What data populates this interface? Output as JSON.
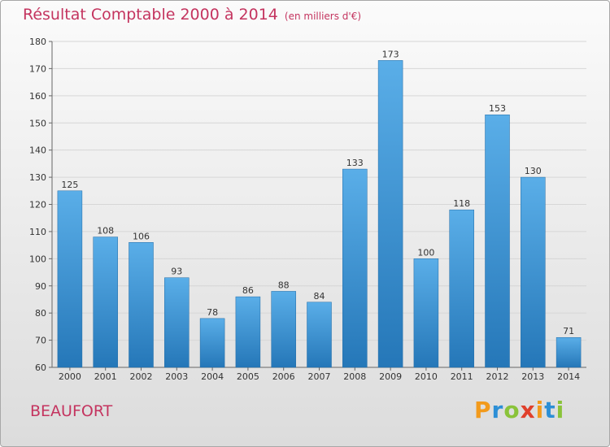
{
  "header": {
    "title": "Résultat Comptable 2000 à 2014",
    "unit": "(en milliers d'€)"
  },
  "footer": {
    "commune": "BEAUFORT",
    "logo_text": "Proxiti"
  },
  "colors": {
    "title": "#c4345f",
    "bar_top": "#5aaee8",
    "bar_bottom": "#2577b8"
  },
  "chart_data": {
    "type": "bar",
    "title": "Résultat Comptable 2000 à 2014",
    "xlabel": "",
    "ylabel": "",
    "categories": [
      "2000",
      "2001",
      "2002",
      "2003",
      "2004",
      "2005",
      "2006",
      "2007",
      "2008",
      "2009",
      "2010",
      "2011",
      "2012",
      "2013",
      "2014"
    ],
    "values": [
      125,
      108,
      106,
      93,
      78,
      86,
      88,
      84,
      133,
      173,
      100,
      118,
      153,
      130,
      71
    ],
    "ylim": [
      60,
      180
    ],
    "yticks": [
      60,
      70,
      80,
      90,
      100,
      110,
      120,
      130,
      140,
      150,
      160,
      170,
      180
    ],
    "grid": true,
    "legend": "none"
  }
}
